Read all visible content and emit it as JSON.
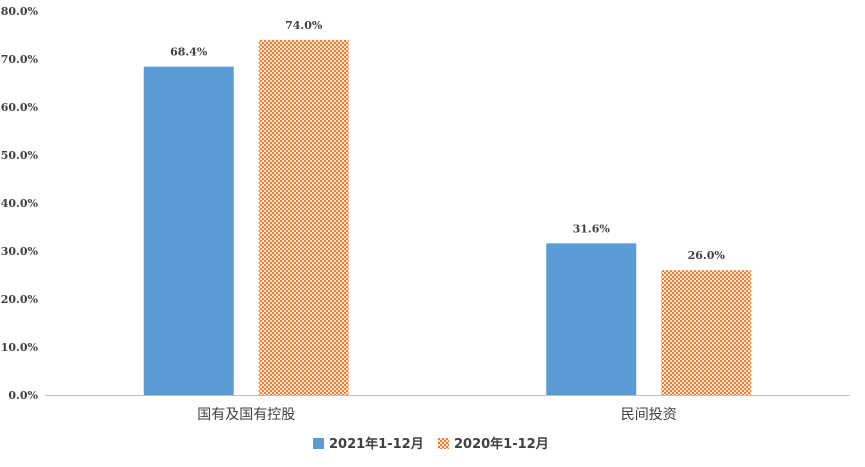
{
  "chart_data": {
    "type": "bar",
    "categories": [
      "国有及国有控股",
      "民间投资"
    ],
    "series": [
      {
        "name": "2021年1-12月",
        "values": [
          68.4,
          31.6
        ],
        "labels": [
          "68.4%",
          "31.6%"
        ],
        "color": "#5b9bd5",
        "pattern": "solid"
      },
      {
        "name": "2020年1-12月",
        "values": [
          74.0,
          26.0
        ],
        "labels": [
          "74.0%",
          "26.0%"
        ],
        "color": "#ed7d31",
        "pattern": "checker"
      }
    ],
    "ylim": [
      0,
      80
    ],
    "yticks": [
      0,
      10,
      20,
      30,
      40,
      50,
      60,
      70,
      80
    ],
    "ytick_labels": [
      "0.0%",
      "10.0%",
      "20.0%",
      "30.0%",
      "40.0%",
      "50.0%",
      "60.0%",
      "70.0%",
      "80.0%"
    ],
    "grid": false,
    "legend_position": "bottom-center",
    "title": "",
    "xlabel": "",
    "ylabel": ""
  }
}
